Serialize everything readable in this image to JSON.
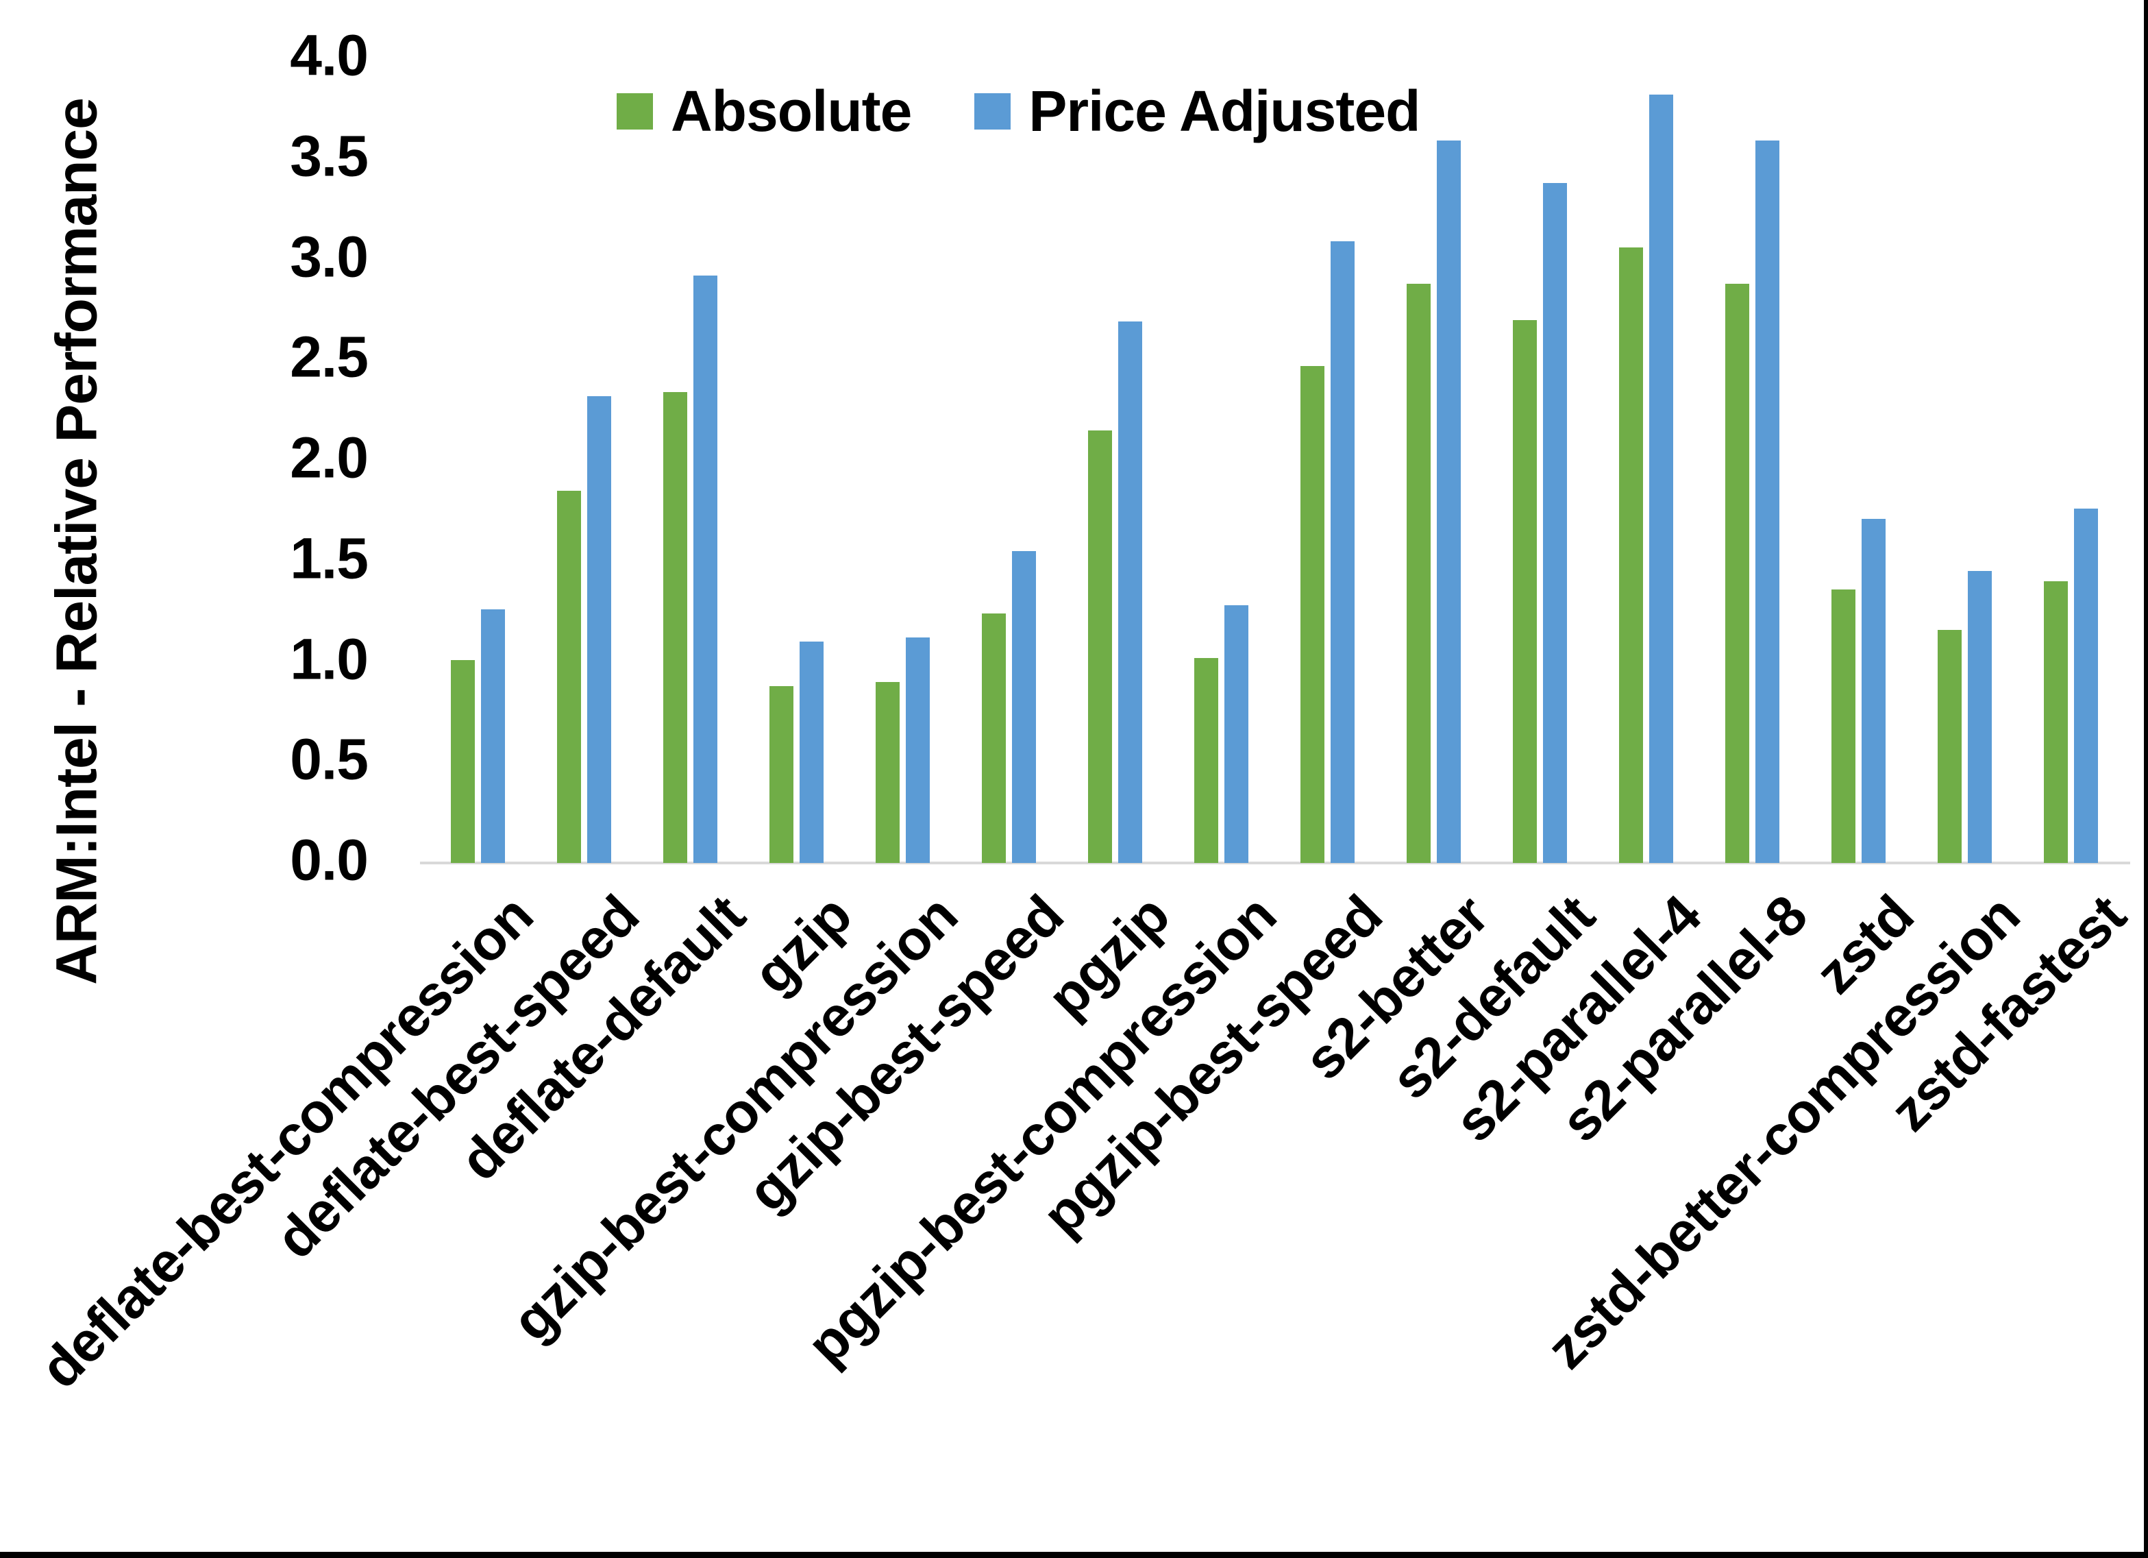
{
  "chart_data": {
    "type": "bar",
    "title": "",
    "xlabel": "",
    "ylabel": "ARM:Intel - Relative Performance",
    "ylim": [
      0.0,
      4.0
    ],
    "ytick_labels": [
      "0.0",
      "0.5",
      "1.0",
      "1.5",
      "2.0",
      "2.5",
      "3.0",
      "3.5",
      "4.0"
    ],
    "grid": false,
    "legend_position": "top-center",
    "categories": [
      "deflate-best-compression",
      "deflate-best-speed",
      "deflate-default",
      "gzip",
      "gzip-best-compression",
      "gzip-best-speed",
      "pgzip",
      "pgzip-best-compression",
      "pgzip-best-speed",
      "s2-better",
      "s2-default",
      "s2-parallel-4",
      "s2-parallel-8",
      "zstd",
      "zstd-better-compression",
      "zstd-fastest"
    ],
    "series": [
      {
        "name": "Absolute",
        "color": "#70AD47",
        "values": [
          1.01,
          1.85,
          2.34,
          0.88,
          0.9,
          1.24,
          2.15,
          1.02,
          2.47,
          2.88,
          2.7,
          3.06,
          2.88,
          1.36,
          1.16,
          1.4
        ]
      },
      {
        "name": "Price Adjusted",
        "color": "#5B9BD5",
        "values": [
          1.26,
          2.32,
          2.92,
          1.1,
          1.12,
          1.55,
          2.69,
          1.28,
          3.09,
          3.59,
          3.38,
          3.82,
          3.59,
          1.71,
          1.45,
          1.76
        ]
      }
    ]
  },
  "colors": {
    "background": "#FFFFFF",
    "text": "#000000",
    "axis_line": "#D9D9D9",
    "frame_border": "#000000"
  }
}
